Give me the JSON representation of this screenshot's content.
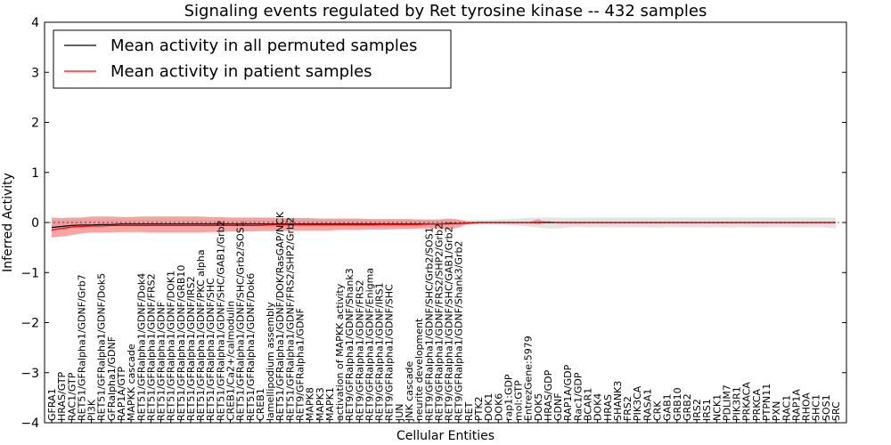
{
  "chart_data": {
    "type": "line",
    "title": "Signaling events regulated by Ret tyrosine kinase -- 432 samples",
    "xlabel": "Cellular Entities",
    "ylabel": "Inferred Activity",
    "ylim": [
      -4,
      4
    ],
    "yticks": [
      "4",
      "3",
      "2",
      "1",
      "0",
      "−1",
      "−2",
      "−3",
      "−4"
    ],
    "grid": false,
    "legend_position": "top-left",
    "colors": {
      "permuted": "#000000",
      "patient": "#ff0000",
      "patient_band": "#f08080",
      "permuted_band": "#c0c0c0"
    },
    "categories": [
      "GFRA1",
      "HRAS/GTP",
      "RAC1/GTP",
      "RET51/GFRalpha1/GDNF/Grb7",
      "PI3K",
      "RET51/GFRalpha1/GDNF/Dok5",
      "GFRalpha1/GDNF",
      "RAP1A/GTP",
      "MAPKK cascade",
      "RET51/GFRalpha1/GDNF/Dok4",
      "RET51/GFRalpha1/GDNF/FRS2",
      "RET51/GFRalpha1/GDNF",
      "RET51/GFRalpha1/GDNF/DOK1",
      "RET51/GFRalpha1/GDNF/GRB10",
      "RET51/GFRalpha1/GDNF/IRS2",
      "RET51/GFRalpha1/GDNF/PKC alpha",
      "RET51/GFRalpha1/GDNF/SHC",
      "RET51/GFRalpha1/GDNF/SHC/GAB1/Grb2",
      "CREB1/Ca2+/calmodulin",
      "RET51/GFRalpha1/GDNF/SHC/Grb2/SOS1",
      "RET51/GFRalpha1/GDNF/Dok6",
      "CREB1",
      "lamellipodium assembly",
      "RET51/GFRalpha1/GDNF/DOK/RasGAP/NCK",
      "RET51/GFRalpha1/GDNF/FRS2/SHP2/Grb2",
      "RET9/GFRalpha1/GDNF",
      "MAPK8",
      "MAPK3",
      "MAPK1",
      "activation of MAPKK activity",
      "RET9/GFRalpha1/GDNF/Shank3",
      "RET9/GFRalpha1/GDNF/FRS2",
      "RET9/GFRalpha1/GDNF/Enigma",
      "RET9/GFRalpha1/GDNF/IRS1",
      "RET9/GFRalpha1/GDNF/SHC",
      "JUN",
      "JNK cascade",
      "neurite development",
      "RET9/GFRalpha1/GDNF/SHC/Grb2/SOS1",
      "RET9/GFRalpha1/GDNF/FRS2/SHP2/Grb2",
      "RET9/GFRalpha1/GDNF/SHC/GAB1/Grb2",
      "RET9/GFRalpha1/GDNF/Shank3/Grb2",
      "RET",
      "PTK2",
      "DOK1",
      "DOK6",
      "rap1:GDP",
      "mol:GTP",
      "EntrezGene:5979",
      "DOK5",
      "HRAS/GDP",
      "GDNF",
      "RAP1A/GDP",
      "Rac1/GDP",
      "BCAR1",
      "DOK4",
      "HRAS",
      "SHANK3",
      "FRS2",
      "PIK3CA",
      "RASA1",
      "CRK",
      "GAB1",
      "GRB10",
      "GRB2",
      "IRS2",
      "IRS1",
      "NCK1",
      "PDLIM7",
      "PIK3R1",
      "PRKACA",
      "PRKCA",
      "PTPN11",
      "PXN",
      "RAC1",
      "RAP1A",
      "RHOA",
      "SHC1",
      "SOS1",
      "SRC"
    ],
    "series": [
      {
        "name": "Mean activity in all permuted samples",
        "values": [
          -0.1,
          -0.08,
          -0.06,
          -0.05,
          -0.05,
          -0.04,
          -0.04,
          -0.03,
          -0.03,
          -0.03,
          -0.03,
          -0.03,
          -0.03,
          -0.03,
          -0.03,
          -0.03,
          -0.03,
          -0.03,
          -0.03,
          -0.03,
          -0.03,
          -0.03,
          -0.03,
          -0.03,
          -0.03,
          -0.03,
          -0.03,
          -0.03,
          -0.03,
          -0.03,
          -0.03,
          -0.03,
          -0.03,
          -0.03,
          -0.03,
          -0.03,
          -0.03,
          -0.03,
          -0.03,
          -0.03,
          -0.02,
          -0.02,
          -0.01,
          0.0,
          0.0,
          0.0,
          0.0,
          0.0,
          0.0,
          0.0,
          0.0,
          0.0,
          0.0,
          0.0,
          0.0,
          0.0,
          0.0,
          0.0,
          0.0,
          0.0,
          0.0,
          0.0,
          0.0,
          0.0,
          0.0,
          0.0,
          0.0,
          0.0,
          0.0,
          0.0,
          0.0,
          0.0,
          0.0,
          0.0,
          0.0,
          0.0,
          0.0,
          0.0,
          0.0,
          0.0
        ],
        "lower": [
          -0.15,
          -0.13,
          -0.12,
          -0.1,
          -0.1,
          -0.09,
          -0.09,
          -0.08,
          -0.08,
          -0.08,
          -0.08,
          -0.08,
          -0.08,
          -0.08,
          -0.08,
          -0.08,
          -0.08,
          -0.08,
          -0.08,
          -0.08,
          -0.08,
          -0.08,
          -0.08,
          -0.08,
          -0.08,
          -0.08,
          -0.08,
          -0.08,
          -0.08,
          -0.08,
          -0.08,
          -0.08,
          -0.08,
          -0.08,
          -0.08,
          -0.08,
          -0.08,
          -0.08,
          -0.08,
          -0.08,
          -0.07,
          -0.06,
          -0.05,
          -0.04,
          -0.04,
          -0.04,
          -0.05,
          -0.06,
          -0.08,
          -0.1,
          -0.12,
          -0.12,
          -0.1,
          -0.09,
          -0.1,
          -0.1,
          -0.1,
          -0.1,
          -0.1,
          -0.1,
          -0.1,
          -0.1,
          -0.1,
          -0.1,
          -0.1,
          -0.1,
          -0.1,
          -0.1,
          -0.1,
          -0.1,
          -0.1,
          -0.1,
          -0.1,
          -0.1,
          -0.1,
          -0.1,
          -0.1,
          -0.1,
          -0.1,
          -0.12
        ],
        "upper": [
          0.05,
          0.05,
          0.05,
          0.06,
          0.06,
          0.06,
          0.06,
          0.06,
          0.06,
          0.06,
          0.06,
          0.06,
          0.06,
          0.06,
          0.06,
          0.06,
          0.06,
          0.06,
          0.06,
          0.06,
          0.06,
          0.06,
          0.06,
          0.06,
          0.06,
          0.06,
          0.06,
          0.06,
          0.06,
          0.06,
          0.06,
          0.06,
          0.06,
          0.06,
          0.06,
          0.06,
          0.06,
          0.06,
          0.06,
          0.06,
          0.06,
          0.05,
          0.05,
          0.05,
          0.05,
          0.06,
          0.07,
          0.08,
          0.09,
          0.1,
          0.1,
          0.1,
          0.09,
          0.09,
          0.1,
          0.1,
          0.1,
          0.1,
          0.1,
          0.1,
          0.1,
          0.1,
          0.1,
          0.1,
          0.1,
          0.1,
          0.1,
          0.1,
          0.1,
          0.1,
          0.1,
          0.1,
          0.1,
          0.1,
          0.1,
          0.1,
          0.1,
          0.1,
          0.1,
          0.1
        ]
      },
      {
        "name": "Mean activity in patient samples",
        "values": [
          -0.15,
          -0.12,
          -0.09,
          -0.08,
          -0.07,
          -0.07,
          -0.06,
          -0.06,
          -0.06,
          -0.06,
          -0.06,
          -0.06,
          -0.06,
          -0.06,
          -0.06,
          -0.06,
          -0.06,
          -0.06,
          -0.06,
          -0.06,
          -0.06,
          -0.06,
          -0.05,
          -0.05,
          -0.05,
          -0.05,
          -0.05,
          -0.05,
          -0.05,
          -0.05,
          -0.05,
          -0.05,
          -0.05,
          -0.04,
          -0.04,
          -0.04,
          -0.04,
          -0.04,
          -0.03,
          -0.03,
          -0.03,
          -0.02,
          -0.01,
          0.0,
          0.0,
          0.0,
          0.0,
          0.0,
          0.0,
          0.0,
          0.01,
          0.0,
          0.0,
          0.0,
          0.0,
          0.0,
          0.0,
          0.0,
          0.0,
          0.0,
          0.0,
          0.0,
          0.0,
          0.0,
          0.0,
          0.0,
          0.0,
          0.0,
          0.0,
          0.0,
          0.0,
          0.0,
          0.0,
          0.0,
          0.0,
          0.0,
          0.0,
          0.0,
          0.0,
          0.0
        ],
        "lower": [
          -0.3,
          -0.28,
          -0.25,
          -0.22,
          -0.2,
          -0.2,
          -0.2,
          -0.19,
          -0.19,
          -0.19,
          -0.2,
          -0.2,
          -0.2,
          -0.2,
          -0.2,
          -0.2,
          -0.19,
          -0.19,
          -0.18,
          -0.18,
          -0.18,
          -0.17,
          -0.17,
          -0.17,
          -0.16,
          -0.16,
          -0.16,
          -0.16,
          -0.16,
          -0.15,
          -0.15,
          -0.15,
          -0.14,
          -0.14,
          -0.14,
          -0.13,
          -0.13,
          -0.12,
          -0.12,
          -0.12,
          -0.14,
          -0.1,
          -0.02,
          0.0,
          0.0,
          0.0,
          0.0,
          0.0,
          0.0,
          -0.03,
          0.0,
          0.0,
          0.0,
          0.0,
          0.0,
          0.0,
          0.0,
          0.0,
          0.0,
          0.0,
          0.0,
          0.0,
          0.0,
          0.0,
          0.0,
          0.0,
          0.0,
          0.0,
          0.0,
          0.0,
          0.0,
          0.0,
          0.0,
          0.0,
          0.0,
          0.0,
          0.0,
          0.0,
          0.0,
          0.0
        ],
        "upper": [
          0.1,
          0.09,
          0.1,
          0.1,
          0.12,
          0.12,
          0.12,
          0.11,
          0.11,
          0.12,
          0.12,
          0.12,
          0.12,
          0.12,
          0.12,
          0.12,
          0.11,
          0.11,
          0.1,
          0.1,
          0.1,
          0.1,
          0.1,
          0.09,
          0.09,
          0.09,
          0.09,
          0.08,
          0.08,
          0.08,
          0.08,
          0.08,
          0.07,
          0.07,
          0.07,
          0.07,
          0.07,
          0.06,
          0.06,
          0.06,
          0.08,
          0.06,
          0.02,
          0.0,
          0.0,
          0.0,
          0.0,
          0.0,
          0.0,
          0.07,
          0.0,
          0.0,
          0.0,
          0.0,
          0.0,
          0.0,
          0.0,
          0.0,
          0.0,
          0.0,
          0.0,
          0.0,
          0.0,
          0.0,
          0.0,
          0.0,
          0.0,
          0.0,
          0.0,
          0.0,
          0.0,
          0.0,
          0.0,
          0.0,
          0.0,
          0.0,
          0.0,
          0.0,
          0.0,
          0.0
        ]
      }
    ]
  }
}
